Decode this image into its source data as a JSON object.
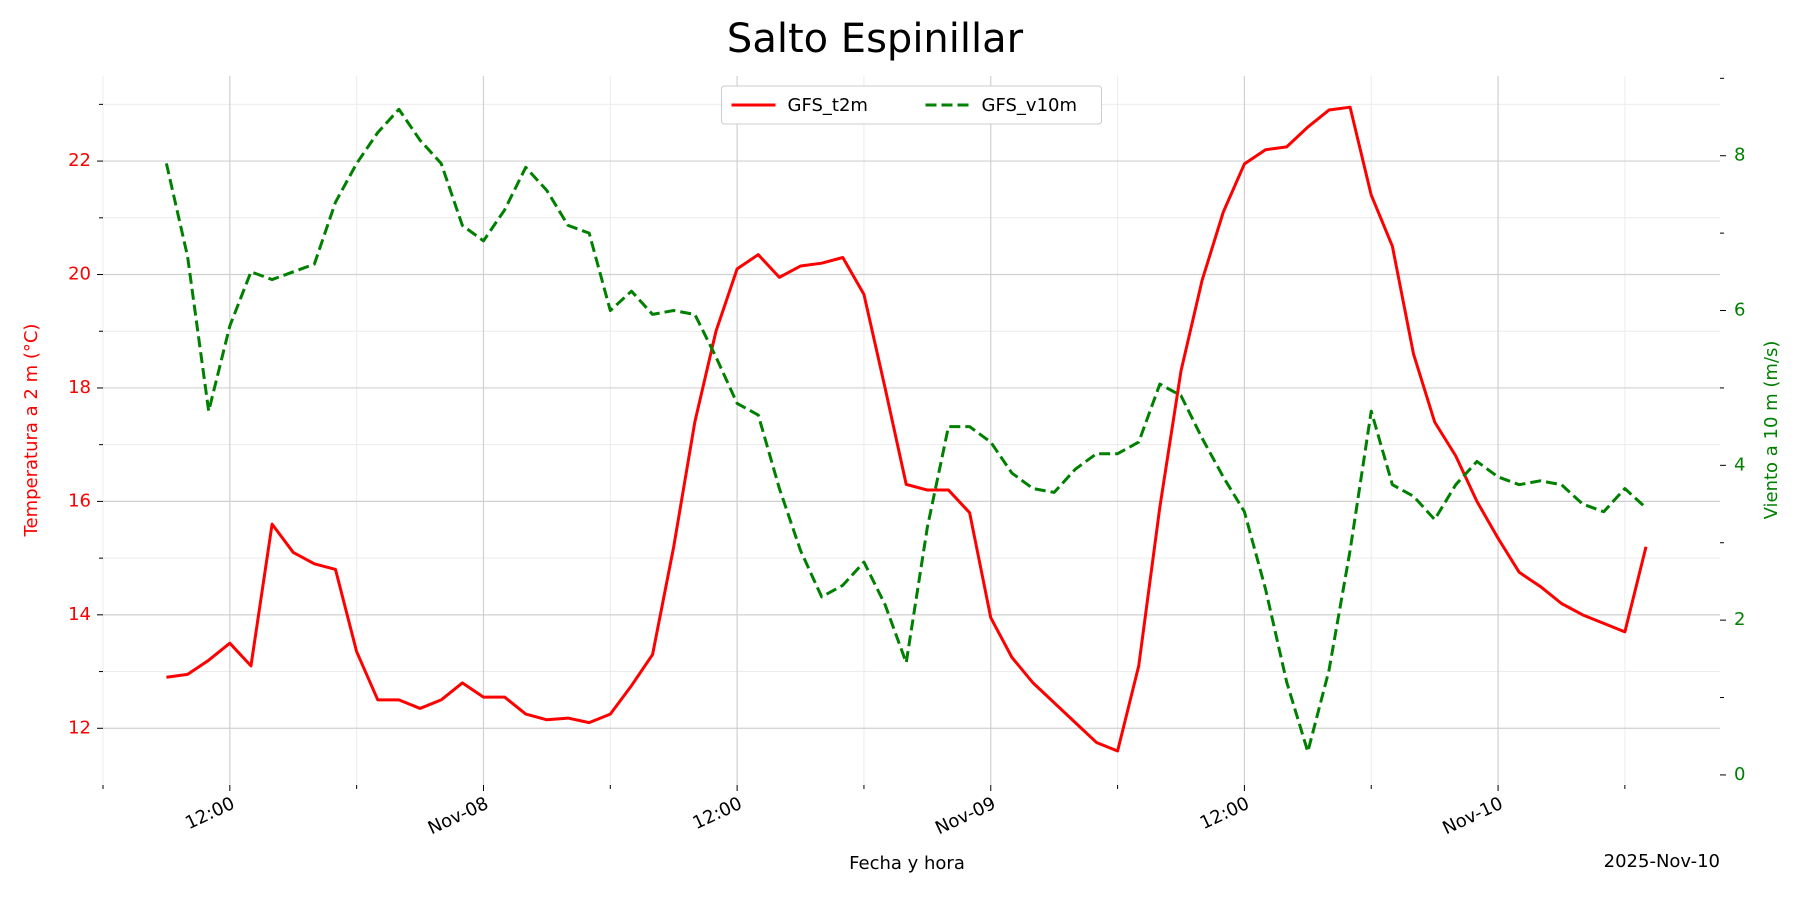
{
  "chart_data": {
    "type": "line",
    "title": "Salto Espinillar",
    "xlabel": "Fecha y hora",
    "ylabel": "Temperatura a 2 m (°C)",
    "y2label": "Viento a 10 m (m/s)",
    "annotation": "2025-Nov-10",
    "x": [
      "2025-11-07T09:00",
      "2025-11-07T10:00",
      "2025-11-07T11:00",
      "2025-11-07T12:00",
      "2025-11-07T13:00",
      "2025-11-07T14:00",
      "2025-11-07T15:00",
      "2025-11-07T16:00",
      "2025-11-07T17:00",
      "2025-11-07T18:00",
      "2025-11-07T19:00",
      "2025-11-07T20:00",
      "2025-11-07T21:00",
      "2025-11-07T22:00",
      "2025-11-07T23:00",
      "2025-11-08T00:00",
      "2025-11-08T01:00",
      "2025-11-08T02:00",
      "2025-11-08T03:00",
      "2025-11-08T04:00",
      "2025-11-08T05:00",
      "2025-11-08T06:00",
      "2025-11-08T07:00",
      "2025-11-08T08:00",
      "2025-11-08T09:00",
      "2025-11-08T10:00",
      "2025-11-08T11:00",
      "2025-11-08T12:00",
      "2025-11-08T13:00",
      "2025-11-08T14:00",
      "2025-11-08T15:00",
      "2025-11-08T16:00",
      "2025-11-08T17:00",
      "2025-11-08T18:00",
      "2025-11-08T19:00",
      "2025-11-08T20:00",
      "2025-11-08T21:00",
      "2025-11-08T22:00",
      "2025-11-08T23:00",
      "2025-11-09T00:00",
      "2025-11-09T01:00",
      "2025-11-09T02:00",
      "2025-11-09T03:00",
      "2025-11-09T04:00",
      "2025-11-09T05:00",
      "2025-11-09T06:00",
      "2025-11-09T07:00",
      "2025-11-09T08:00",
      "2025-11-09T09:00",
      "2025-11-09T10:00",
      "2025-11-09T11:00",
      "2025-11-09T12:00",
      "2025-11-09T13:00",
      "2025-11-09T14:00",
      "2025-11-09T15:00",
      "2025-11-09T16:00",
      "2025-11-09T17:00",
      "2025-11-09T18:00",
      "2025-11-09T19:00",
      "2025-11-09T20:00",
      "2025-11-09T21:00",
      "2025-11-09T22:00",
      "2025-11-09T23:00",
      "2025-11-10T00:00",
      "2025-11-10T01:00",
      "2025-11-10T02:00",
      "2025-11-10T03:00",
      "2025-11-10T04:00",
      "2025-11-10T05:00",
      "2025-11-10T06:00",
      "2025-11-10T07:00"
    ],
    "series": [
      {
        "name": "GFS_t2m",
        "color": "#ff0000",
        "dash": false,
        "axis": "y",
        "values": [
          12.9,
          12.95,
          13.2,
          13.5,
          13.1,
          15.6,
          15.1,
          14.9,
          14.8,
          13.35,
          12.5,
          12.5,
          12.35,
          12.5,
          12.8,
          12.55,
          12.55,
          12.25,
          12.15,
          12.18,
          12.1,
          12.25,
          12.75,
          13.3,
          15.2,
          17.4,
          19.0,
          20.1,
          20.35,
          19.95,
          20.15,
          20.2,
          20.3,
          19.65,
          18.0,
          16.3,
          16.2,
          16.2,
          15.8,
          13.95,
          13.25,
          12.8,
          12.45,
          12.1,
          11.75,
          11.6,
          13.1,
          15.9,
          18.3,
          19.9,
          21.1,
          21.95,
          22.2,
          22.25,
          22.6,
          22.9,
          22.95,
          21.4,
          20.5,
          18.6,
          17.4,
          16.8,
          16.0,
          15.35,
          14.75,
          14.5,
          14.2,
          14.0,
          13.85,
          13.7,
          15.2
        ]
      },
      {
        "name": "GFS_v10m",
        "color": "#008000",
        "dash": true,
        "axis": "y2",
        "values": [
          7.9,
          6.7,
          4.7,
          5.8,
          6.5,
          6.4,
          6.5,
          6.6,
          7.4,
          7.9,
          8.3,
          8.6,
          8.2,
          7.9,
          7.1,
          6.9,
          7.3,
          7.85,
          7.55,
          7.1,
          7.0,
          6.0,
          6.25,
          5.95,
          6.0,
          5.95,
          5.4,
          4.8,
          4.65,
          3.7,
          2.9,
          2.3,
          2.45,
          2.75,
          2.2,
          1.45,
          3.2,
          4.5,
          4.5,
          4.3,
          3.9,
          3.7,
          3.65,
          3.95,
          4.15,
          4.15,
          4.3,
          5.05,
          4.9,
          4.35,
          3.85,
          3.4,
          2.4,
          1.2,
          0.3,
          1.35,
          2.9,
          4.7,
          3.75,
          3.6,
          3.3,
          3.75,
          4.05,
          3.85,
          3.75,
          3.8,
          3.75,
          3.5,
          3.4,
          3.7,
          3.45
        ]
      }
    ],
    "xlim": [
      "2025-11-07T06:00",
      "2025-11-10T10:30"
    ],
    "xticks": [
      {
        "value": "2025-11-07T12:00",
        "label": "12:00"
      },
      {
        "value": "2025-11-08T00:00",
        "label": "Nov-08"
      },
      {
        "value": "2025-11-08T12:00",
        "label": "12:00"
      },
      {
        "value": "2025-11-09T00:00",
        "label": "Nov-09"
      },
      {
        "value": "2025-11-09T12:00",
        "label": "12:00"
      },
      {
        "value": "2025-11-10T00:00",
        "label": "Nov-10"
      }
    ],
    "xticks_minor": [
      "2025-11-07T06:00",
      "2025-11-07T18:00",
      "2025-11-08T06:00",
      "2025-11-08T18:00",
      "2025-11-09T06:00",
      "2025-11-09T18:00",
      "2025-11-10T06:00"
    ],
    "ylim": [
      11,
      23.5
    ],
    "yticks": [
      12,
      14,
      16,
      18,
      20,
      22
    ],
    "yticks_minor": [
      13,
      15,
      17,
      19,
      21,
      23
    ],
    "y2lim": [
      -0.13,
      9.03
    ],
    "y2ticks": [
      0,
      2,
      4,
      6,
      8
    ],
    "y2ticks_minor": [
      1,
      3,
      5,
      7,
      9
    ],
    "grid": true,
    "legend": "upper center"
  }
}
